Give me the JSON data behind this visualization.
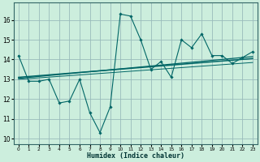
{
  "xlabel": "Humidex (Indice chaleur)",
  "bg_color": "#cceedd",
  "grid_color": "#99bbbb",
  "line_color": "#006666",
  "xlim": [
    -0.5,
    23.5
  ],
  "ylim": [
    9.7,
    16.9
  ],
  "yticks": [
    10,
    11,
    12,
    13,
    14,
    15,
    16
  ],
  "xticks": [
    0,
    1,
    2,
    3,
    4,
    5,
    6,
    7,
    8,
    9,
    10,
    11,
    12,
    13,
    14,
    15,
    16,
    17,
    18,
    19,
    20,
    21,
    22,
    23
  ],
  "main_x": [
    0,
    1,
    2,
    3,
    4,
    5,
    6,
    7,
    8,
    9,
    10,
    11,
    12,
    13,
    14,
    15,
    16,
    17,
    18,
    19,
    20,
    21,
    22,
    23
  ],
  "main_y": [
    14.2,
    12.9,
    12.9,
    13.0,
    11.8,
    11.9,
    13.0,
    11.3,
    10.3,
    11.6,
    16.3,
    16.2,
    15.0,
    13.5,
    13.9,
    13.1,
    15.0,
    14.6,
    15.3,
    14.2,
    14.2,
    13.8,
    14.1,
    14.4
  ],
  "line1_x": [
    0,
    23
  ],
  "line1_y": [
    13.05,
    14.15
  ],
  "line2_x": [
    0,
    23
  ],
  "line2_y": [
    13.1,
    14.05
  ],
  "line3_x": [
    0,
    23
  ],
  "line3_y": [
    13.0,
    13.85
  ]
}
